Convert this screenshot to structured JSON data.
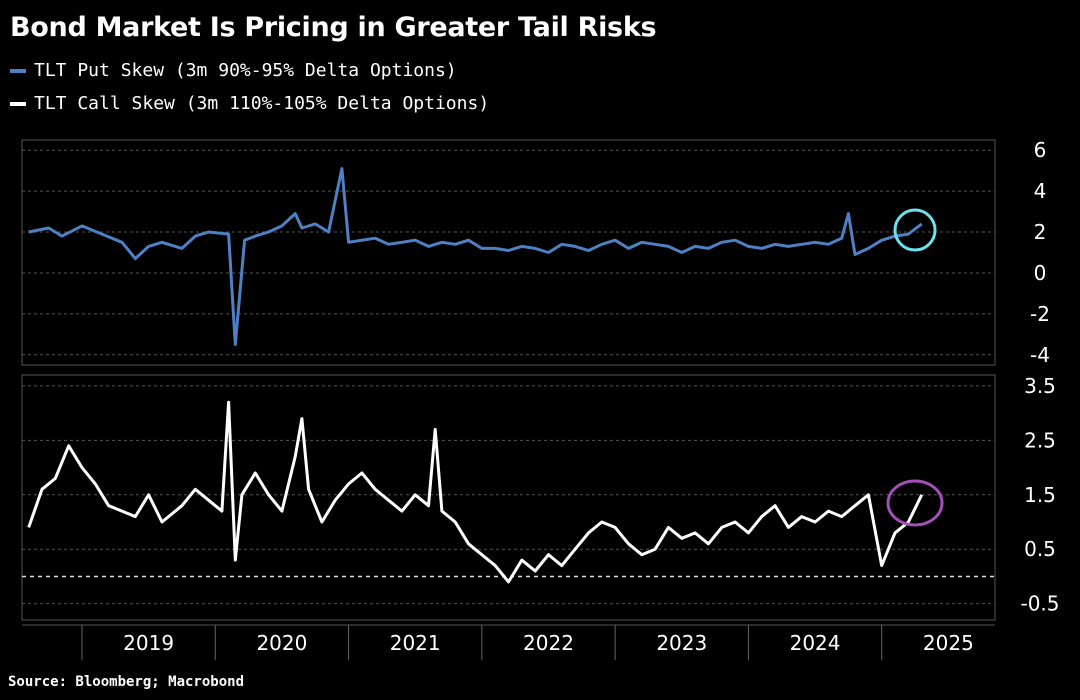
{
  "header": {
    "title": "Bond Market Is Pricing in Greater Tail Risks",
    "source": "Source: Bloomberg; Macrobond"
  },
  "legend": [
    {
      "label": "TLT Put Skew (3m 90%-95% Delta Options)",
      "color": "#4f80c4"
    },
    {
      "label": "TLT Call Skew (3m 110%-105% Delta Options)",
      "color": "#ffffff"
    }
  ],
  "chart_data": [
    {
      "type": "line",
      "name": "TLT Put Skew (3m 90%-95% Delta Options)",
      "color": "#4f80c4",
      "ylim": [
        -4.5,
        6.5
      ],
      "yticks": [
        "6",
        "4",
        "2",
        "0",
        "-2",
        "-4"
      ],
      "ytick_values": [
        6,
        4,
        2,
        0,
        -2,
        -4
      ],
      "x": [
        2018.6,
        2018.75,
        2018.85,
        2019.0,
        2019.15,
        2019.3,
        2019.4,
        2019.5,
        2019.6,
        2019.75,
        2019.85,
        2019.95,
        2020.1,
        2020.15,
        2020.22,
        2020.3,
        2020.4,
        2020.5,
        2020.6,
        2020.65,
        2020.75,
        2020.85,
        2020.95,
        2021.0,
        2021.1,
        2021.2,
        2021.3,
        2021.4,
        2021.5,
        2021.6,
        2021.7,
        2021.8,
        2021.9,
        2022.0,
        2022.1,
        2022.2,
        2022.3,
        2022.4,
        2022.5,
        2022.6,
        2022.7,
        2022.8,
        2022.9,
        2023.0,
        2023.1,
        2023.2,
        2023.3,
        2023.4,
        2023.5,
        2023.6,
        2023.7,
        2023.8,
        2023.9,
        2024.0,
        2024.1,
        2024.2,
        2024.3,
        2024.4,
        2024.5,
        2024.6,
        2024.7,
        2024.75,
        2024.8,
        2024.9,
        2025.0,
        2025.1,
        2025.2,
        2025.3
      ],
      "values": [
        2.0,
        2.2,
        1.8,
        2.3,
        1.9,
        1.5,
        0.7,
        1.3,
        1.5,
        1.2,
        1.8,
        2.0,
        1.9,
        -3.5,
        1.6,
        1.8,
        2.0,
        2.3,
        2.9,
        2.2,
        2.4,
        2.0,
        5.1,
        1.5,
        1.6,
        1.7,
        1.4,
        1.5,
        1.6,
        1.3,
        1.5,
        1.4,
        1.6,
        1.2,
        1.2,
        1.1,
        1.3,
        1.2,
        1.0,
        1.4,
        1.3,
        1.1,
        1.4,
        1.6,
        1.2,
        1.5,
        1.4,
        1.3,
        1.0,
        1.3,
        1.2,
        1.5,
        1.6,
        1.3,
        1.2,
        1.4,
        1.3,
        1.4,
        1.5,
        1.4,
        1.7,
        2.9,
        0.9,
        1.2,
        1.6,
        1.8,
        1.9,
        2.4
      ],
      "annotation": {
        "x": 2025.25,
        "y": 2.0,
        "shape": "circle",
        "color": "#6fe0ea"
      }
    },
    {
      "type": "line",
      "name": "TLT Call Skew (3m 110%-105% Delta Options)",
      "color": "#ffffff",
      "ylim": [
        -0.8,
        3.7
      ],
      "yticks": [
        "3.5",
        "2.5",
        "1.5",
        "0.5",
        "-0.5"
      ],
      "ytick_values": [
        3.5,
        2.5,
        1.5,
        0.5,
        -0.5
      ],
      "zero_line": true,
      "x": [
        2018.6,
        2018.7,
        2018.8,
        2018.9,
        2019.0,
        2019.1,
        2019.2,
        2019.3,
        2019.4,
        2019.5,
        2019.6,
        2019.75,
        2019.85,
        2019.95,
        2020.05,
        2020.1,
        2020.15,
        2020.2,
        2020.3,
        2020.4,
        2020.5,
        2020.6,
        2020.65,
        2020.7,
        2020.8,
        2020.9,
        2021.0,
        2021.1,
        2021.2,
        2021.3,
        2021.4,
        2021.5,
        2021.6,
        2021.65,
        2021.7,
        2021.8,
        2021.9,
        2022.0,
        2022.1,
        2022.2,
        2022.3,
        2022.4,
        2022.5,
        2022.6,
        2022.7,
        2022.8,
        2022.9,
        2023.0,
        2023.1,
        2023.2,
        2023.3,
        2023.4,
        2023.5,
        2023.6,
        2023.7,
        2023.8,
        2023.9,
        2024.0,
        2024.1,
        2024.2,
        2024.3,
        2024.4,
        2024.5,
        2024.6,
        2024.7,
        2024.8,
        2024.9,
        2025.0,
        2025.1,
        2025.2,
        2025.3
      ],
      "values": [
        0.9,
        1.6,
        1.8,
        2.4,
        2.0,
        1.7,
        1.3,
        1.2,
        1.1,
        1.5,
        1.0,
        1.3,
        1.6,
        1.4,
        1.2,
        3.2,
        0.3,
        1.5,
        1.9,
        1.5,
        1.2,
        2.2,
        2.9,
        1.6,
        1.0,
        1.4,
        1.7,
        1.9,
        1.6,
        1.4,
        1.2,
        1.5,
        1.3,
        2.7,
        1.2,
        1.0,
        0.6,
        0.4,
        0.2,
        -0.1,
        0.3,
        0.1,
        0.4,
        0.2,
        0.5,
        0.8,
        1.0,
        0.9,
        0.6,
        0.4,
        0.5,
        0.9,
        0.7,
        0.8,
        0.6,
        0.9,
        1.0,
        0.8,
        1.1,
        1.3,
        0.9,
        1.1,
        1.0,
        1.2,
        1.1,
        1.3,
        1.5,
        0.2,
        0.8,
        1.0,
        1.5
      ],
      "annotation": {
        "x": 2025.25,
        "y": 1.35,
        "shape": "ellipse",
        "color": "#a34fb5"
      }
    }
  ],
  "x_axis": {
    "labels": [
      "2019",
      "2020",
      "2021",
      "2022",
      "2023",
      "2024",
      "2025"
    ],
    "label_values": [
      2019.5,
      2020.5,
      2021.5,
      2022.5,
      2023.5,
      2024.5,
      2025.5
    ],
    "xlim": [
      2018.55,
      2025.85
    ]
  }
}
